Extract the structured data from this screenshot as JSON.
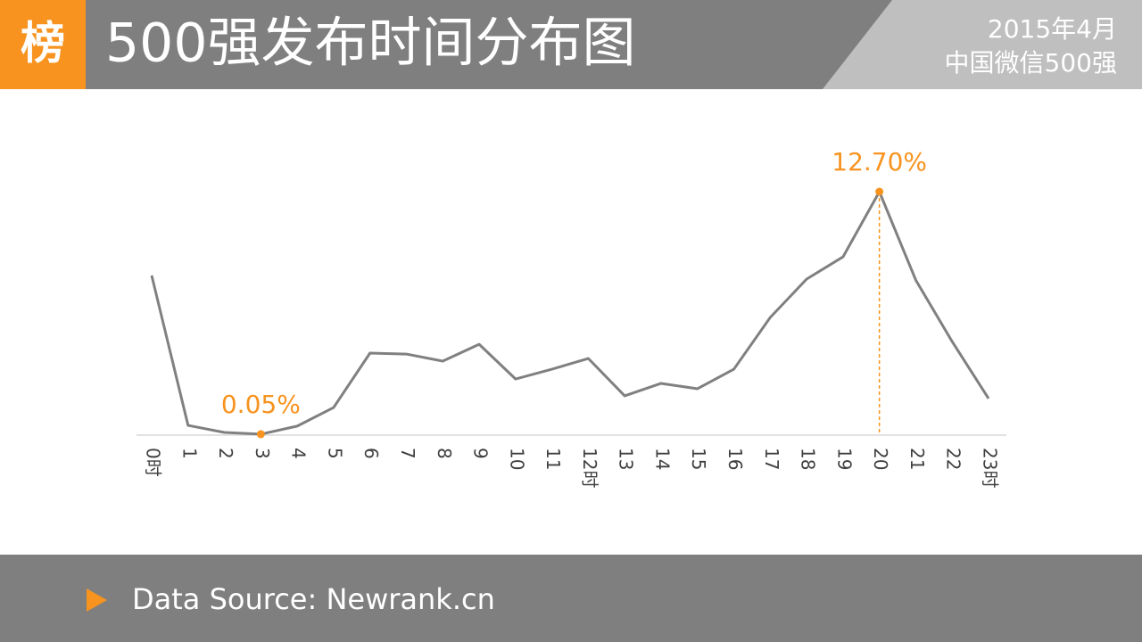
{
  "header": {
    "logo": "榜",
    "date": "2015年4月",
    "label": "中国微信500强"
  },
  "footer": {
    "source": "Data Source: Newrank.cn"
  },
  "chart_data": {
    "type": "line",
    "title": "500强发布时间分布图",
    "categories": [
      "0时",
      "1",
      "2",
      "3",
      "4",
      "5",
      "6",
      "7",
      "8",
      "9",
      "10",
      "11",
      "12时",
      "13",
      "14",
      "15",
      "16",
      "17",
      "18",
      "19",
      "20",
      "21",
      "22",
      "23时"
    ],
    "values": [
      8.33,
      0.51,
      0.14,
      0.05,
      0.47,
      1.44,
      4.28,
      4.23,
      3.86,
      4.74,
      2.93,
      3.44,
      4.0,
      2.05,
      2.7,
      2.42,
      3.44,
      6.14,
      8.14,
      9.3,
      12.7,
      8.09,
      4.88,
      1.91
    ],
    "value_labels": [
      null,
      null,
      null,
      "0.05%",
      null,
      null,
      null,
      null,
      null,
      null,
      null,
      null,
      null,
      null,
      null,
      null,
      null,
      null,
      null,
      null,
      "12.70%",
      null,
      null,
      null
    ],
    "color": "#808080",
    "label_color": "#f7931e"
  }
}
